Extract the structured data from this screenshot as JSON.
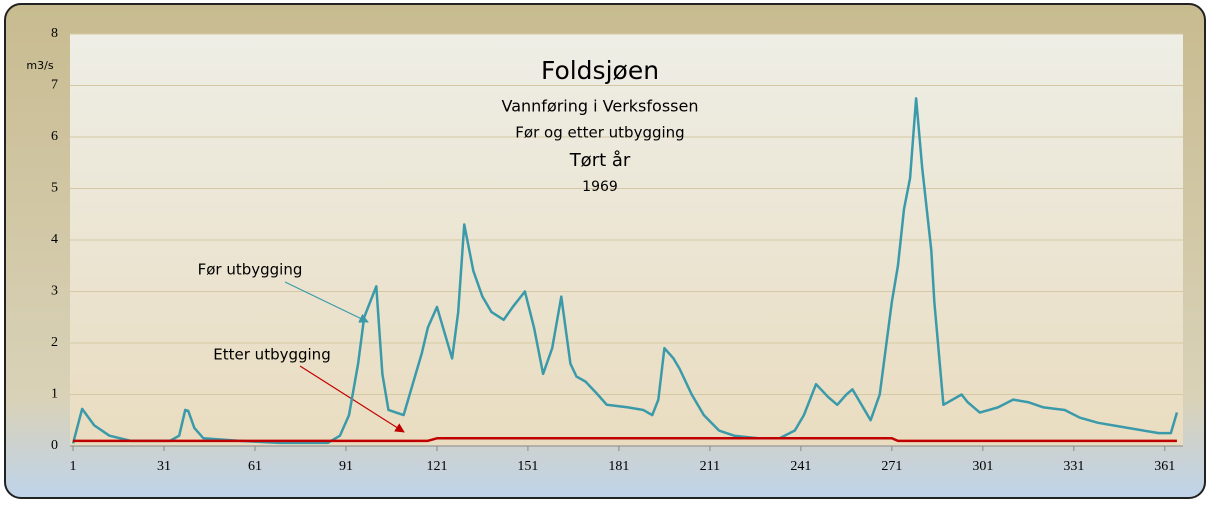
{
  "chart_data": {
    "type": "line",
    "title": "Foldsjøen",
    "subtitle": "Vannføring i Verksfossen",
    "subtitle2": "Før og etter utbygging",
    "subtitle3": "Tørt år",
    "year": "1969",
    "y_label": "m3/s",
    "xlim": [
      0,
      367
    ],
    "ylim": [
      0,
      8
    ],
    "xticks": [
      1,
      31,
      61,
      91,
      121,
      151,
      181,
      211,
      241,
      271,
      301,
      331,
      361
    ],
    "yticks": [
      0,
      1,
      2,
      3,
      4,
      5,
      6,
      7,
      8
    ],
    "grid": true,
    "x": [
      1,
      4,
      8,
      13,
      20,
      33,
      36,
      38,
      39,
      41,
      44,
      56,
      69,
      85,
      89,
      92,
      95,
      97,
      101,
      103,
      105,
      110,
      113,
      116,
      118,
      121,
      123,
      126,
      128,
      130,
      133,
      136,
      139,
      143,
      146,
      150,
      153,
      156,
      159,
      162,
      165,
      167,
      170,
      174,
      177,
      184,
      189,
      192,
      194,
      196,
      199,
      201,
      205,
      209,
      214,
      219,
      227,
      234,
      239,
      242,
      246,
      250,
      253,
      256,
      258,
      261,
      264,
      267,
      271,
      273,
      275,
      277,
      279,
      281,
      284,
      285,
      288,
      294,
      296,
      300,
      306,
      311,
      316,
      321,
      328,
      333,
      339,
      349,
      359,
      363,
      365
    ],
    "series": [
      {
        "name": "Før utbygging",
        "color": "#3a9aaa",
        "values": [
          0.05,
          0.72,
          0.4,
          0.2,
          0.1,
          0.1,
          0.2,
          0.7,
          0.68,
          0.35,
          0.15,
          0.1,
          0.06,
          0.06,
          0.2,
          0.6,
          1.6,
          2.5,
          3.1,
          1.4,
          0.7,
          0.6,
          1.2,
          1.8,
          2.3,
          2.7,
          2.3,
          1.7,
          2.6,
          4.3,
          3.4,
          2.9,
          2.6,
          2.45,
          2.7,
          3.0,
          2.3,
          1.4,
          1.9,
          2.9,
          1.6,
          1.35,
          1.25,
          1.0,
          0.8,
          0.75,
          0.7,
          0.6,
          0.9,
          1.9,
          1.7,
          1.5,
          1.0,
          0.6,
          0.3,
          0.2,
          0.15,
          0.15,
          0.3,
          0.6,
          1.2,
          0.95,
          0.8,
          1.0,
          1.1,
          0.8,
          0.5,
          1.0,
          2.8,
          3.5,
          4.6,
          5.2,
          6.75,
          5.4,
          3.8,
          2.8,
          0.8,
          1.0,
          0.85,
          0.65,
          0.75,
          0.9,
          0.85,
          0.75,
          0.7,
          0.55,
          0.45,
          0.35,
          0.25,
          0.25,
          0.65
        ]
      },
      {
        "name": "Etter utbygging",
        "color": "#c00000",
        "values": [
          0.1,
          0.1,
          0.1,
          0.1,
          0.1,
          0.1,
          0.1,
          0.1,
          0.1,
          0.1,
          0.1,
          0.1,
          0.1,
          0.1,
          0.1,
          0.1,
          0.1,
          0.1,
          0.1,
          0.1,
          0.1,
          0.1,
          0.1,
          0.1,
          0.1,
          0.15,
          0.15,
          0.15,
          0.15,
          0.15,
          0.15,
          0.15,
          0.15,
          0.15,
          0.15,
          0.15,
          0.15,
          0.15,
          0.15,
          0.15,
          0.15,
          0.15,
          0.15,
          0.15,
          0.15,
          0.15,
          0.15,
          0.15,
          0.15,
          0.15,
          0.15,
          0.15,
          0.15,
          0.15,
          0.15,
          0.15,
          0.15,
          0.15,
          0.15,
          0.15,
          0.15,
          0.15,
          0.15,
          0.15,
          0.15,
          0.15,
          0.15,
          0.15,
          0.15,
          0.1,
          0.1,
          0.1,
          0.1,
          0.1,
          0.1,
          0.1,
          0.1,
          0.1,
          0.1,
          0.1,
          0.1,
          0.1,
          0.1,
          0.1,
          0.1,
          0.1,
          0.1,
          0.1,
          0.1,
          0.1,
          0.1
        ]
      }
    ]
  }
}
